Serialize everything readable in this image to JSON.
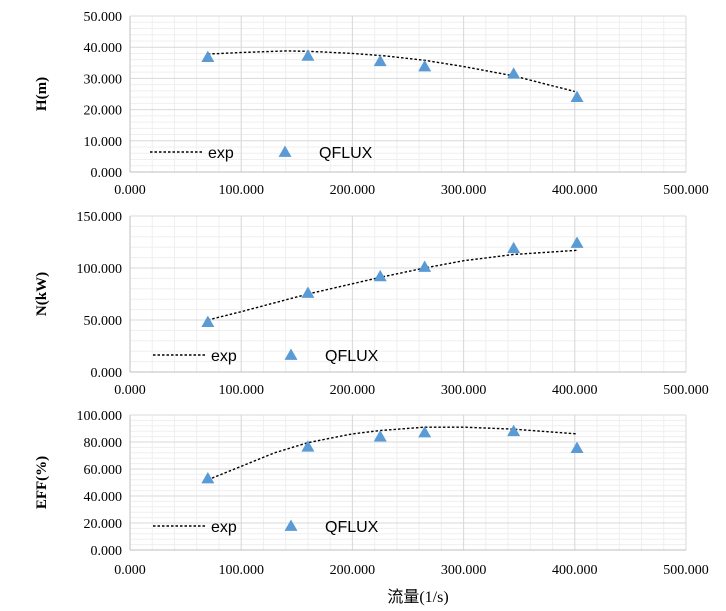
{
  "chart_data": [
    {
      "type": "scatter",
      "ylabel": "H(m)",
      "xlim": [
        0,
        500
      ],
      "ylim": [
        0,
        50
      ],
      "x_ticks": [
        "0.000",
        "100.000",
        "200.000",
        "300.000",
        "400.000",
        "500.000"
      ],
      "y_ticks": [
        "0.000",
        "10.000",
        "20.000",
        "30.000",
        "40.000",
        "50.000"
      ],
      "grid": true,
      "legend_position": "bottom-left",
      "series": [
        {
          "name": "exp",
          "style": "dotted-line",
          "color": "#000000",
          "x": [
            70,
            100,
            140,
            160,
            200,
            230,
            265,
            300,
            345,
            400
          ],
          "y": [
            37.8,
            38.3,
            38.8,
            38.7,
            38.0,
            37.2,
            35.8,
            33.8,
            30.8,
            25.8
          ]
        },
        {
          "name": "QFLUX",
          "style": "triangle-marker",
          "color": "#5B9BD5",
          "x": [
            70,
            160,
            225,
            265,
            345,
            402
          ],
          "y": [
            36.8,
            37.2,
            35.5,
            33.8,
            31.5,
            24.0
          ]
        }
      ]
    },
    {
      "type": "scatter",
      "ylabel": "N(kW)",
      "xlim": [
        0,
        500
      ],
      "ylim": [
        0,
        150
      ],
      "x_ticks": [
        "0.000",
        "100.000",
        "200.000",
        "300.000",
        "400.000",
        "500.000"
      ],
      "y_ticks": [
        "0.000",
        "50.000",
        "100.000",
        "150.000"
      ],
      "grid": true,
      "legend_position": "bottom-left",
      "series": [
        {
          "name": "exp",
          "style": "dotted-line",
          "color": "#000000",
          "x": [
            70,
            100,
            160,
            225,
            265,
            300,
            345,
            402
          ],
          "y": [
            50,
            58,
            75,
            91,
            100,
            107,
            113,
            117
          ]
        },
        {
          "name": "QFLUX",
          "style": "triangle-marker",
          "color": "#5B9BD5",
          "x": [
            70,
            160,
            225,
            265,
            345,
            402
          ],
          "y": [
            48,
            76,
            92,
            101,
            119,
            124
          ]
        }
      ]
    },
    {
      "type": "scatter",
      "ylabel": "EFF(%)",
      "xlabel": "流量(1/s)",
      "xlim": [
        0,
        500
      ],
      "ylim": [
        0,
        100
      ],
      "x_ticks": [
        "0.000",
        "100.000",
        "200.000",
        "300.000",
        "400.000",
        "500.000"
      ],
      "y_ticks": [
        "0.000",
        "20.000",
        "40.000",
        "60.000",
        "80.000",
        "100.000"
      ],
      "grid": true,
      "legend_position": "bottom-left",
      "series": [
        {
          "name": "exp",
          "style": "dotted-line",
          "color": "#000000",
          "x": [
            70,
            100,
            130,
            160,
            200,
            225,
            265,
            300,
            345,
            402
          ],
          "y": [
            52,
            62,
            72,
            79.5,
            86,
            88.5,
            91,
            91,
            89.5,
            86
          ]
        },
        {
          "name": "QFLUX",
          "style": "triangle-marker",
          "color": "#5B9BD5",
          "x": [
            70,
            160,
            225,
            265,
            345,
            402
          ],
          "y": [
            53,
            76.5,
            84,
            87,
            88,
            75.5
          ]
        }
      ]
    }
  ]
}
